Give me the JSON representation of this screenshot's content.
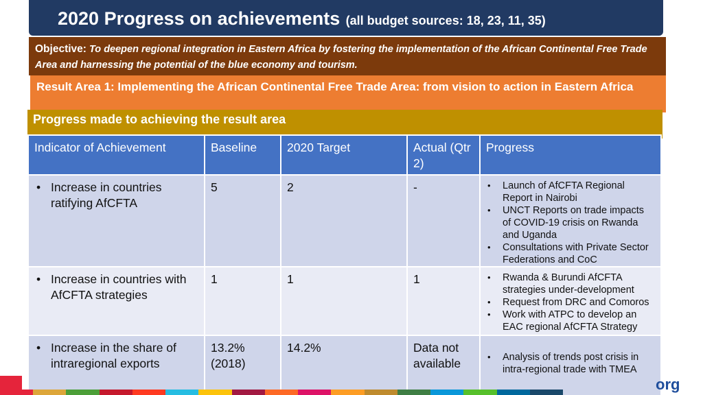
{
  "header": {
    "title": "2020 Progress on achievements",
    "subtitle": "(all budget sources: 18, 23, 11, 35)"
  },
  "objective": {
    "label": "Objective:",
    "text": "To deepen regional integration in Eastern Africa by fostering the implementation of the African Continental Free Trade Area and harnessing the potential of the blue economy and tourism."
  },
  "result_area": {
    "text": "Result Area 1: Implementing the African Continental Free Trade Area: from vision to action in Eastern Africa"
  },
  "progress_strip": {
    "text": "Progress made to achieving the result area"
  },
  "table": {
    "headers": [
      "Indicator of Achievement",
      "Baseline",
      "2020 Target",
      "Actual (Qtr 2)",
      "Progress"
    ],
    "rows": [
      {
        "indicator": "Increase in countries ratifying AfCFTA",
        "baseline": "5",
        "target": "2",
        "actual": "-",
        "progress": [
          "Launch of AfCFTA Regional Report in Nairobi",
          "UNCT Reports on trade impacts of COVID-19 crisis on Rwanda and Uganda",
          "Consultations with Private Sector Federations and CoC"
        ]
      },
      {
        "indicator": "Increase in countries with AfCFTA strategies",
        "baseline": "1",
        "target": "1",
        "actual": "1",
        "progress": [
          "Rwanda & Burundi AfCFTA strategies under-development",
          "Request from DRC and Comoros",
          "Work with ATPC to develop an EAC regional AfCFTA Strategy"
        ]
      },
      {
        "indicator": "Increase in the share of intraregional exports",
        "baseline": "13.2% (2018)",
        "target": "14.2%",
        "actual": "Data not available",
        "progress": [
          "Analysis of trends post crisis in intra-regional trade with TMEA"
        ]
      }
    ]
  },
  "footer": {
    "org_text": "org"
  },
  "colors": {
    "title_bg": "#213a63",
    "objective_bg": "#7c3a0c",
    "result_bg": "#ed7d31",
    "strip_bg": "#bf9000",
    "header_bg": "#4472c4"
  }
}
